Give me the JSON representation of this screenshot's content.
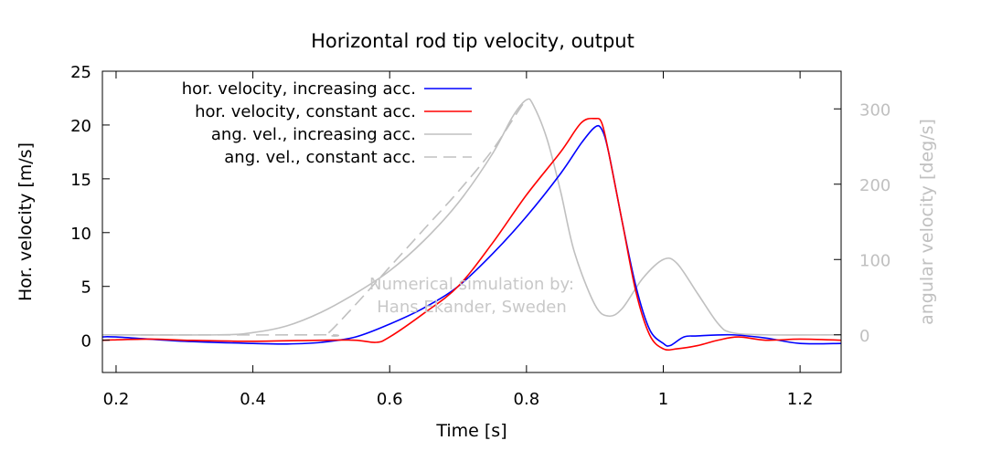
{
  "chart_data": {
    "type": "line",
    "title": "Horizontal rod tip velocity, output",
    "xlabel": "Time [s]",
    "ylabel": "Hor. velocity [m/s]",
    "y2label": "angular velocity [deg/s]",
    "xlim": [
      0.18,
      1.26
    ],
    "ylim": [
      -3,
      25
    ],
    "y2lim": [
      -50,
      350
    ],
    "x_ticks": [
      0.2,
      0.4,
      0.6,
      0.8,
      1.0,
      1.2
    ],
    "x_tick_labels": [
      "0.2",
      "0.4",
      "0.6",
      "0.8",
      "1",
      "1.2"
    ],
    "y_ticks": [
      0,
      5,
      10,
      15,
      20,
      25
    ],
    "y_tick_labels": [
      "0",
      "5",
      "10",
      "15",
      "20",
      "25"
    ],
    "y2_ticks": [
      0,
      100,
      200,
      300
    ],
    "y2_tick_labels": [
      "0",
      "100",
      "200",
      "300"
    ],
    "grid": false,
    "legend_position": "top-left",
    "annotation": [
      "Numerical simulation by:",
      "Hans Ekander, Sweden"
    ],
    "series": [
      {
        "name": "hor. velocity, increasing acc.",
        "axis": "left",
        "color": "#0000ff",
        "dash": "solid",
        "points": [
          [
            0.18,
            0.3
          ],
          [
            0.2,
            0.3
          ],
          [
            0.3,
            -0.1
          ],
          [
            0.4,
            -0.3
          ],
          [
            0.45,
            -0.35
          ],
          [
            0.5,
            -0.2
          ],
          [
            0.55,
            0.3
          ],
          [
            0.6,
            1.5
          ],
          [
            0.65,
            3.0
          ],
          [
            0.7,
            5.0
          ],
          [
            0.75,
            8.0
          ],
          [
            0.8,
            11.5
          ],
          [
            0.85,
            15.5
          ],
          [
            0.88,
            18.3
          ],
          [
            0.9,
            19.8
          ],
          [
            0.91,
            19.6
          ],
          [
            0.92,
            17.5
          ],
          [
            0.94,
            11.0
          ],
          [
            0.96,
            5.0
          ],
          [
            0.98,
            1.0
          ],
          [
            1.0,
            -0.3
          ],
          [
            1.01,
            -0.5
          ],
          [
            1.03,
            0.3
          ],
          [
            1.05,
            0.4
          ],
          [
            1.1,
            0.5
          ],
          [
            1.15,
            0.2
          ],
          [
            1.2,
            -0.3
          ],
          [
            1.26,
            -0.3
          ]
        ]
      },
      {
        "name": "hor. velocity, constant acc.",
        "axis": "left",
        "color": "#ff0000",
        "dash": "solid",
        "points": [
          [
            0.18,
            0.0
          ],
          [
            0.25,
            0.1
          ],
          [
            0.3,
            0.0
          ],
          [
            0.4,
            -0.1
          ],
          [
            0.5,
            0.0
          ],
          [
            0.55,
            0.0
          ],
          [
            0.58,
            -0.2
          ],
          [
            0.6,
            0.3
          ],
          [
            0.65,
            2.5
          ],
          [
            0.7,
            5.0
          ],
          [
            0.75,
            9.0
          ],
          [
            0.8,
            13.5
          ],
          [
            0.85,
            17.5
          ],
          [
            0.88,
            20.2
          ],
          [
            0.9,
            20.6
          ],
          [
            0.91,
            20.2
          ],
          [
            0.92,
            17.5
          ],
          [
            0.94,
            11.0
          ],
          [
            0.96,
            4.5
          ],
          [
            0.98,
            0.5
          ],
          [
            1.0,
            -0.8
          ],
          [
            1.02,
            -0.8
          ],
          [
            1.05,
            -0.5
          ],
          [
            1.08,
            0.0
          ],
          [
            1.11,
            0.3
          ],
          [
            1.15,
            0.0
          ],
          [
            1.2,
            0.1
          ],
          [
            1.26,
            0.0
          ]
        ]
      },
      {
        "name": "ang. vel., increasing acc.",
        "axis": "right",
        "color": "#c0c0c0",
        "dash": "solid",
        "points": [
          [
            0.18,
            0.0
          ],
          [
            0.35,
            0.0
          ],
          [
            0.4,
            3.0
          ],
          [
            0.45,
            12.0
          ],
          [
            0.5,
            30.0
          ],
          [
            0.55,
            55.0
          ],
          [
            0.6,
            85.0
          ],
          [
            0.65,
            125.0
          ],
          [
            0.7,
            175.0
          ],
          [
            0.75,
            240.0
          ],
          [
            0.78,
            290.0
          ],
          [
            0.8,
            312.0
          ],
          [
            0.81,
            305.0
          ],
          [
            0.83,
            260.0
          ],
          [
            0.85,
            190.0
          ],
          [
            0.87,
            110.0
          ],
          [
            0.9,
            40.0
          ],
          [
            0.92,
            25.0
          ],
          [
            0.94,
            35.0
          ],
          [
            0.97,
            75.0
          ],
          [
            1.0,
            100.0
          ],
          [
            1.02,
            95.0
          ],
          [
            1.05,
            55.0
          ],
          [
            1.08,
            15.0
          ],
          [
            1.1,
            3.0
          ],
          [
            1.15,
            0.0
          ],
          [
            1.26,
            0.0
          ]
        ]
      },
      {
        "name": "ang. vel., constant acc.",
        "axis": "right",
        "color": "#c0c0c0",
        "dash": "dashed",
        "points": [
          [
            0.18,
            0.0
          ],
          [
            0.5,
            0.0
          ],
          [
            0.51,
            2.0
          ],
          [
            0.55,
            40.0
          ],
          [
            0.6,
            90.0
          ],
          [
            0.65,
            140.0
          ],
          [
            0.7,
            190.0
          ],
          [
            0.75,
            245.0
          ],
          [
            0.79,
            300.0
          ],
          [
            0.8,
            312.0
          ]
        ]
      }
    ]
  }
}
